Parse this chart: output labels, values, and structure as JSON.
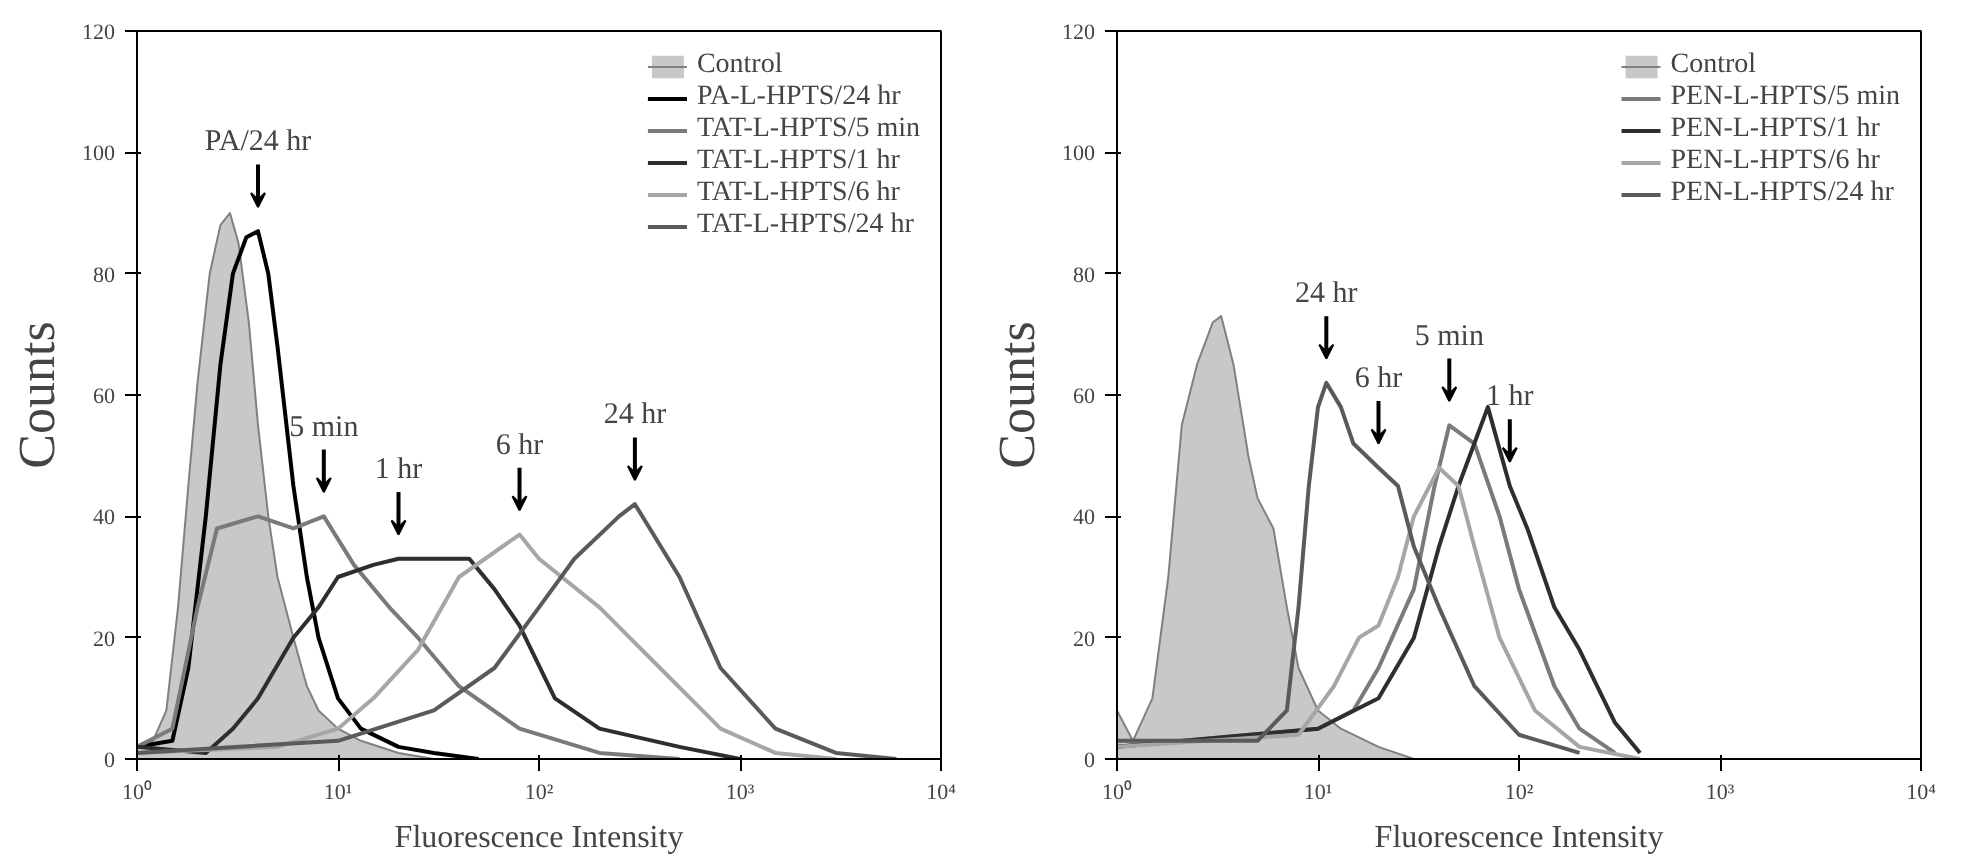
{
  "chart_data": [
    {
      "type": "line",
      "xlabel": "Fluorescence Intensity",
      "ylabel": "Counts",
      "log": "x",
      "grid": false,
      "legend": "top right",
      "xlim": [
        1,
        10000
      ],
      "ylim": [
        0,
        120
      ],
      "xticks": [
        {
          "value": 1,
          "label": "10⁰"
        },
        {
          "value": 10,
          "label": "10¹"
        },
        {
          "value": 100,
          "label": "10²"
        },
        {
          "value": 1000,
          "label": "10³"
        },
        {
          "value": 10000,
          "label": "10⁴"
        }
      ],
      "yticks": [
        0,
        20,
        40,
        60,
        80,
        100,
        120
      ],
      "series": [
        {
          "name": "Control",
          "type": "area",
          "color": "#c8c8c8",
          "x": [
            1.0,
            1.2,
            1.4,
            1.6,
            1.8,
            2.0,
            2.3,
            2.6,
            2.9,
            3.2,
            3.6,
            4.0,
            4.5,
            5.0,
            6,
            7,
            8,
            10,
            13,
            20,
            30
          ],
          "values": [
            2,
            3,
            8,
            25,
            45,
            62,
            80,
            88,
            90,
            85,
            72,
            55,
            40,
            30,
            20,
            12,
            8,
            5,
            3,
            1,
            0
          ]
        },
        {
          "name": "PA-L-HPTS/24 hr",
          "color": "#000000",
          "x": [
            1.0,
            1.5,
            1.8,
            2.2,
            2.6,
            3.0,
            3.5,
            4.0,
            4.5,
            5,
            6,
            7,
            8,
            10,
            13,
            20,
            30,
            50
          ],
          "values": [
            2,
            3,
            15,
            40,
            65,
            80,
            86,
            87,
            80,
            68,
            45,
            30,
            20,
            10,
            5,
            2,
            1,
            0
          ]
        },
        {
          "name": "TAT-L-HPTS/5 min",
          "color": "#7a7a7a",
          "x": [
            1.0,
            1.5,
            2.0,
            2.5,
            4,
            6,
            8.5,
            12,
            18,
            25,
            40,
            80,
            200,
            500
          ],
          "values": [
            2,
            5,
            25,
            38,
            40,
            38,
            40,
            32,
            25,
            20,
            12,
            5,
            1,
            0
          ]
        },
        {
          "name": "TAT-L-HPTS/1 hr",
          "color": "#2e2e2e",
          "x": [
            1.0,
            2.2,
            3,
            4,
            6,
            8,
            10,
            15,
            20,
            30,
            45,
            60,
            80,
            120,
            200,
            500,
            1000
          ],
          "values": [
            2,
            1,
            5,
            10,
            20,
            25,
            30,
            32,
            33,
            33,
            33,
            28,
            22,
            10,
            5,
            2,
            0
          ]
        },
        {
          "name": "TAT-L-HPTS/6 hr",
          "color": "#a6a6a6",
          "x": [
            1.0,
            5,
            10,
            15,
            25,
            40,
            80,
            100,
            200,
            400,
            800,
            1500,
            3000
          ],
          "values": [
            1,
            2,
            5,
            10,
            18,
            30,
            37,
            33,
            25,
            15,
            5,
            1,
            0
          ]
        },
        {
          "name": "TAT-L-HPTS/24 hr",
          "color": "#5a5a5a",
          "x": [
            1.0,
            10,
            30,
            60,
            100,
            150,
            250,
            300,
            500,
            800,
            1500,
            3000,
            6000
          ],
          "values": [
            1,
            3,
            8,
            15,
            25,
            33,
            40,
            42,
            30,
            15,
            5,
            1,
            0
          ]
        }
      ],
      "annotations": [
        {
          "text": "PA/24 hr",
          "x": 4,
          "y": 87
        },
        {
          "text": "5 min",
          "x": 8.5,
          "y": 40
        },
        {
          "text": "1 hr",
          "x": 20,
          "y": 33
        },
        {
          "text": "6 hr",
          "x": 80,
          "y": 37
        },
        {
          "text": "24 hr",
          "x": 300,
          "y": 42
        }
      ]
    },
    {
      "type": "line",
      "xlabel": "Fluorescence Intensity",
      "ylabel": "Counts",
      "log": "x",
      "grid": false,
      "legend": "top right",
      "xlim": [
        1,
        10000
      ],
      "ylim": [
        0,
        120
      ],
      "xticks": [
        {
          "value": 1,
          "label": "10⁰"
        },
        {
          "value": 10,
          "label": "10¹"
        },
        {
          "value": 100,
          "label": "10²"
        },
        {
          "value": 1000,
          "label": "10³"
        },
        {
          "value": 10000,
          "label": "10⁴"
        }
      ],
      "yticks": [
        0,
        20,
        40,
        60,
        80,
        100,
        120
      ],
      "series": [
        {
          "name": "Control",
          "type": "area",
          "color": "#c8c8c8",
          "x": [
            1.0,
            1.2,
            1.5,
            1.8,
            2.1,
            2.5,
            3.0,
            3.3,
            3.8,
            4.5,
            5,
            6,
            7,
            8,
            10,
            13,
            20,
            30
          ],
          "values": [
            8,
            3,
            10,
            30,
            55,
            65,
            72,
            73,
            65,
            50,
            43,
            38,
            25,
            15,
            8,
            5,
            2,
            0
          ]
        },
        {
          "name": "PEN-L-HPTS/5 min",
          "color": "#7a7a7a",
          "x": [
            1.0,
            10,
            15,
            20,
            30,
            38,
            45,
            60,
            80,
            100,
            150,
            200,
            300
          ],
          "values": [
            2,
            5,
            8,
            15,
            28,
            45,
            55,
            52,
            40,
            28,
            12,
            5,
            1
          ]
        },
        {
          "name": "PEN-L-HPTS/1 hr",
          "color": "#2e2e2e",
          "x": [
            1.0,
            10,
            20,
            30,
            40,
            50,
            70,
            90,
            110,
            150,
            200,
            300,
            400
          ],
          "values": [
            2,
            5,
            10,
            20,
            35,
            45,
            58,
            45,
            38,
            25,
            18,
            6,
            1
          ]
        },
        {
          "name": "PEN-L-HPTS/6 hr",
          "color": "#a6a6a6",
          "x": [
            1.0,
            8,
            12,
            16,
            20,
            25,
            30,
            40,
            50,
            60,
            80,
            120,
            200,
            400
          ],
          "values": [
            2,
            4,
            12,
            20,
            22,
            30,
            40,
            48,
            45,
            35,
            20,
            8,
            2,
            0
          ]
        },
        {
          "name": "PEN-L-HPTS/24 hr",
          "color": "#5a5a5a",
          "x": [
            1.0,
            5,
            7,
            8,
            9,
            10,
            11,
            13,
            15,
            20,
            25,
            30,
            40,
            60,
            100,
            200
          ],
          "values": [
            3,
            3,
            8,
            25,
            45,
            58,
            62,
            58,
            52,
            48,
            45,
            35,
            25,
            12,
            4,
            1
          ]
        }
      ],
      "annotations": [
        {
          "text": "24 hr",
          "x": 11,
          "y": 62
        },
        {
          "text": "6 hr",
          "x": 20,
          "y": 48
        },
        {
          "text": "5 min",
          "x": 45,
          "y": 55
        },
        {
          "text": "1 hr",
          "x": 90,
          "y": 45
        }
      ]
    }
  ]
}
